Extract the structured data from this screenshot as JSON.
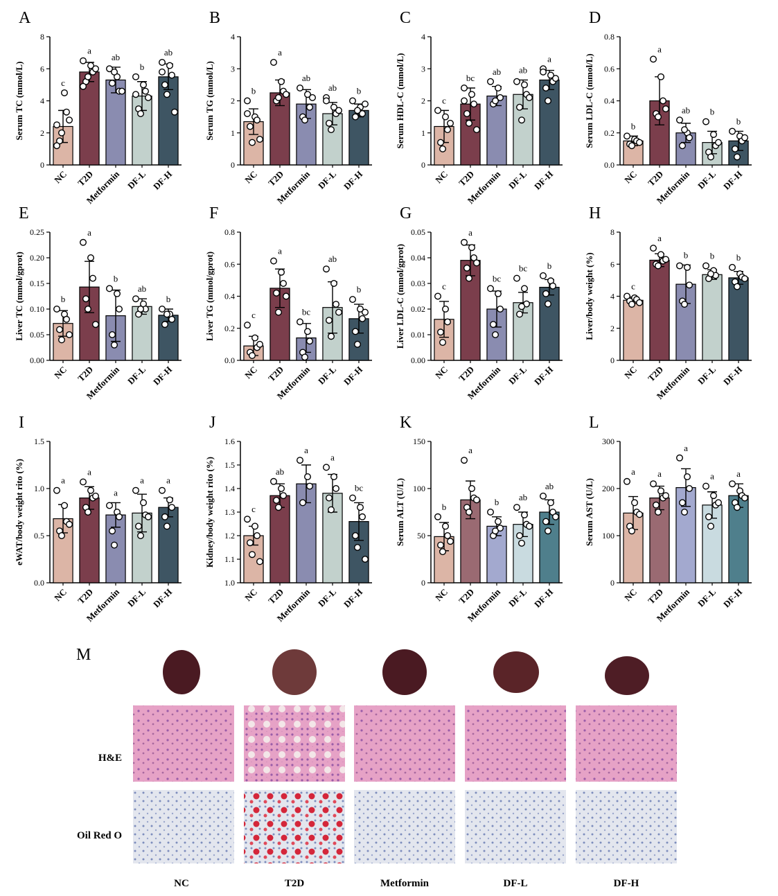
{
  "chart_data": [
    {
      "type": "bar",
      "panel": "A",
      "ylabel": "Serum TC (mmol/L)",
      "categories": [
        "NC",
        "T2D",
        "Metformin",
        "DF-L",
        "DF-H"
      ],
      "colors": [
        "#dcb5a6",
        "#7b3e4c",
        "#8a8cb0",
        "#c2d1cc",
        "#3e5563"
      ],
      "values": [
        2.4,
        5.8,
        5.3,
        4.3,
        5.5
      ],
      "errors": [
        1.0,
        0.6,
        0.8,
        0.9,
        0.8
      ],
      "letters": [
        "c",
        "a",
        "ab",
        "b",
        "ab"
      ],
      "points": [
        [
          2.5,
          4.5,
          3.3,
          1.5,
          2.0,
          2.8,
          1.2
        ],
        [
          6.5,
          6.2,
          5.8,
          5.2,
          5.5,
          6.0,
          4.9
        ],
        [
          6.0,
          5.5,
          4.6,
          5.1,
          5.8,
          4.6
        ],
        [
          5.5,
          5.0,
          4.6,
          3.5,
          3.2,
          4.2,
          4.4
        ],
        [
          6.4,
          6.2,
          5.6,
          5.0,
          4.4,
          3.3,
          5.8
        ]
      ],
      "ylim": [
        0,
        8
      ],
      "yticks": [
        0,
        2,
        4,
        6,
        8
      ]
    },
    {
      "type": "bar",
      "panel": "B",
      "ylabel": "Serum TG (mmol/L)",
      "categories": [
        "NC",
        "T2D",
        "Metformin",
        "DF-L",
        "DF-H"
      ],
      "colors": [
        "#dcb5a6",
        "#7b3e4c",
        "#8a8cb0",
        "#c2d1cc",
        "#3e5563"
      ],
      "values": [
        1.35,
        2.25,
        1.9,
        1.6,
        1.7
      ],
      "errors": [
        0.4,
        0.4,
        0.45,
        0.35,
        0.2
      ],
      "letters": [
        "b",
        "a",
        "ab",
        "ab",
        "b"
      ],
      "points": [
        [
          2.0,
          1.5,
          1.4,
          1.2,
          0.7,
          0.8,
          1.6
        ],
        [
          3.2,
          2.6,
          2.3,
          2.0,
          2.1,
          2.2
        ],
        [
          2.4,
          2.2,
          1.8,
          1.5,
          1.4,
          2.1
        ],
        [
          2.1,
          1.8,
          1.6,
          1.3,
          1.1,
          1.7,
          2.0
        ],
        [
          2.0,
          1.8,
          1.6,
          1.5,
          1.7,
          1.9
        ]
      ],
      "ylim": [
        0,
        4
      ],
      "yticks": [
        0,
        1,
        2,
        3,
        4
      ]
    },
    {
      "type": "bar",
      "panel": "C",
      "ylabel": "Serum HDL-C (mmol/L)",
      "categories": [
        "NC",
        "T2D",
        "Metformin",
        "DF-L",
        "DF-H"
      ],
      "colors": [
        "#dcb5a6",
        "#7b3e4c",
        "#8a8cb0",
        "#c2d1cc",
        "#3e5563"
      ],
      "values": [
        1.2,
        1.9,
        2.15,
        2.2,
        2.65
      ],
      "errors": [
        0.5,
        0.5,
        0.3,
        0.45,
        0.3
      ],
      "letters": [
        "c",
        "bc",
        "ab",
        "ab",
        "a"
      ],
      "points": [
        [
          1.7,
          1.5,
          1.1,
          0.7,
          0.5,
          1.3
        ],
        [
          2.4,
          2.2,
          1.9,
          1.6,
          1.3,
          1.1,
          2.0
        ],
        [
          2.6,
          2.4,
          2.1,
          1.9,
          2.0
        ],
        [
          2.6,
          2.5,
          2.2,
          1.8,
          1.4,
          2.1
        ],
        [
          3.0,
          2.8,
          2.6,
          2.4,
          2.0,
          2.7,
          2.9
        ]
      ],
      "ylim": [
        0,
        4
      ],
      "yticks": [
        0,
        1,
        2,
        3,
        4
      ]
    },
    {
      "type": "bar",
      "panel": "D",
      "ylabel": "Serum LDL-C (mmol/L)",
      "categories": [
        "NC",
        "T2D",
        "Metformin",
        "DF-L",
        "DF-H"
      ],
      "colors": [
        "#dcb5a6",
        "#7b3e4c",
        "#8a8cb0",
        "#c2d1cc",
        "#3e5563"
      ],
      "values": [
        0.15,
        0.4,
        0.2,
        0.14,
        0.15
      ],
      "errors": [
        0.03,
        0.15,
        0.06,
        0.07,
        0.06
      ],
      "letters": [
        "b",
        "a",
        "ab",
        "b",
        "b"
      ],
      "points": [
        [
          0.18,
          0.16,
          0.15,
          0.13,
          0.12,
          0.14
        ],
        [
          0.66,
          0.55,
          0.4,
          0.32,
          0.3,
          0.35
        ],
        [
          0.28,
          0.2,
          0.17,
          0.12,
          0.22
        ],
        [
          0.27,
          0.19,
          0.12,
          0.08,
          0.05,
          0.14
        ],
        [
          0.21,
          0.18,
          0.15,
          0.1,
          0.05,
          0.17
        ]
      ],
      "ylim": [
        0,
        0.8
      ],
      "yticks": [
        {
          "value": 0,
          "label": "0.0"
        },
        0.2,
        0.4,
        0.6,
        0.8
      ]
    },
    {
      "type": "bar",
      "panel": "E",
      "ylabel": "Liver TC (mmol/gprot)",
      "categories": [
        "NC",
        "T2D",
        "Metformin",
        "DF-L",
        "DF-H"
      ],
      "colors": [
        "#dcb5a6",
        "#7b3e4c",
        "#8a8cb0",
        "#c2d1cc",
        "#3e5563"
      ],
      "values": [
        0.072,
        0.143,
        0.087,
        0.105,
        0.088
      ],
      "errors": [
        0.025,
        0.05,
        0.05,
        0.015,
        0.012
      ],
      "letters": [
        "b",
        "a",
        "b",
        "ab",
        "b"
      ],
      "points": [
        [
          0.1,
          0.09,
          0.08,
          0.06,
          0.04,
          0.05
        ],
        [
          0.23,
          0.2,
          0.16,
          0.12,
          0.1,
          0.07
        ],
        [
          0.14,
          0.13,
          0.1,
          0.05,
          0.03
        ],
        [
          0.12,
          0.11,
          0.1,
          0.09,
          0.1
        ],
        [
          0.1,
          0.09,
          0.08,
          0.07,
          0.09
        ]
      ],
      "ylim": [
        0,
        0.25
      ],
      "yticks": [
        {
          "value": 0,
          "label": "0.00"
        },
        0.05,
        {
          "value": 0.1,
          "label": "0.10"
        },
        0.15,
        {
          "value": 0.2,
          "label": "0.20"
        },
        0.25
      ]
    },
    {
      "type": "bar",
      "panel": "F",
      "ylabel": "Liver TG (mmol/gprot)",
      "categories": [
        "NC",
        "T2D",
        "Metformin",
        "DF-L",
        "DF-H"
      ],
      "colors": [
        "#dcb5a6",
        "#7b3e4c",
        "#8a8cb0",
        "#c2d1cc",
        "#3e5563"
      ],
      "values": [
        0.09,
        0.45,
        0.14,
        0.33,
        0.26
      ],
      "errors": [
        0.06,
        0.12,
        0.09,
        0.16,
        0.09
      ],
      "letters": [
        "c",
        "a",
        "bc",
        "ab",
        "b"
      ],
      "points": [
        [
          0.22,
          0.14,
          0.08,
          0.05,
          0.03,
          0.1
        ],
        [
          0.62,
          0.55,
          0.48,
          0.42,
          0.3,
          0.4
        ],
        [
          0.24,
          0.18,
          0.12,
          0.05,
          0.02
        ],
        [
          0.57,
          0.48,
          0.35,
          0.25,
          0.15,
          0.3
        ],
        [
          0.38,
          0.32,
          0.26,
          0.18,
          0.1,
          0.3
        ]
      ],
      "ylim": [
        0,
        0.8
      ],
      "yticks": [
        {
          "value": 0,
          "label": "0.0"
        },
        0.2,
        0.4,
        0.6,
        0.8
      ]
    },
    {
      "type": "bar",
      "panel": "G",
      "ylabel": "Liver LDL-C (mmol/gprot)",
      "categories": [
        "NC",
        "T2D",
        "Metformin",
        "DF-L",
        "DF-H"
      ],
      "colors": [
        "#dcb5a6",
        "#7b3e4c",
        "#8a8cb0",
        "#c2d1cc",
        "#3e5563"
      ],
      "values": [
        0.016,
        0.039,
        0.02,
        0.0225,
        0.0285
      ],
      "errors": [
        0.007,
        0.006,
        0.007,
        0.004,
        0.003
      ],
      "letters": [
        "c",
        "a",
        "bc",
        "bc",
        "b"
      ],
      "points": [
        [
          0.025,
          0.02,
          0.015,
          0.011,
          0.007
        ],
        [
          0.046,
          0.044,
          0.04,
          0.036,
          0.032,
          0.038
        ],
        [
          0.028,
          0.026,
          0.02,
          0.014,
          0.01
        ],
        [
          0.032,
          0.028,
          0.022,
          0.018,
          0.021
        ],
        [
          0.033,
          0.031,
          0.029,
          0.026,
          0.022
        ]
      ],
      "ylim": [
        0,
        0.05
      ],
      "yticks": [
        {
          "value": 0,
          "label": "0.00"
        },
        0.01,
        0.02,
        0.03,
        0.04,
        0.05
      ]
    },
    {
      "type": "bar",
      "panel": "H",
      "ylabel": "Liver/body weight (%)",
      "categories": [
        "NC",
        "T2D",
        "Metformin",
        "DF-L",
        "DF-H"
      ],
      "colors": [
        "#dcb5a6",
        "#7b3e4c",
        "#8a8cb0",
        "#c2d1cc",
        "#3e5563"
      ],
      "values": [
        3.75,
        6.25,
        4.75,
        5.35,
        5.15
      ],
      "errors": [
        0.2,
        0.4,
        1.2,
        0.3,
        0.4
      ],
      "letters": [
        "c",
        "a",
        "b",
        "b",
        "b"
      ],
      "points": [
        [
          4.0,
          3.9,
          3.8,
          3.7,
          3.5,
          3.6
        ],
        [
          7.0,
          6.6,
          6.2,
          6.0,
          5.9,
          6.3
        ],
        [
          5.9,
          5.8,
          4.7,
          3.7,
          3.5
        ],
        [
          5.9,
          5.6,
          5.3,
          5.1,
          5.4
        ],
        [
          5.8,
          5.4,
          5.2,
          4.9,
          4.6,
          5.1
        ]
      ],
      "ylim": [
        0,
        8
      ],
      "yticks": [
        0,
        2,
        4,
        6,
        8
      ]
    },
    {
      "type": "bar",
      "panel": "I",
      "ylabel": "eWAT/body weight rito (%)",
      "categories": [
        "NC",
        "T2D",
        "Metformin",
        "DF-L",
        "DF-H"
      ],
      "colors": [
        "#dcb5a6",
        "#7b3e4c",
        "#8a8cb0",
        "#c2d1cc",
        "#3e5563"
      ],
      "values": [
        0.68,
        0.9,
        0.72,
        0.74,
        0.8
      ],
      "errors": [
        0.15,
        0.12,
        0.13,
        0.2,
        0.1
      ],
      "letters": [
        "a",
        "a",
        "a",
        "a",
        "a"
      ],
      "points": [
        [
          0.98,
          0.82,
          0.65,
          0.55,
          0.5,
          0.62
        ],
        [
          1.07,
          0.98,
          0.9,
          0.8,
          0.75,
          0.92
        ],
        [
          0.82,
          0.75,
          0.7,
          0.55,
          0.4
        ],
        [
          0.98,
          0.85,
          0.72,
          0.6,
          0.5,
          0.7
        ],
        [
          0.98,
          0.88,
          0.8,
          0.7,
          0.6
        ]
      ],
      "ylim": [
        0,
        1.5
      ],
      "yticks": [
        {
          "value": 0,
          "label": "0.0"
        },
        0.5,
        {
          "value": 1,
          "label": "1.0"
        },
        1.5
      ]
    },
    {
      "type": "bar",
      "panel": "J",
      "ylabel": "Kidney/body weight rito (%)",
      "categories": [
        "NC",
        "T2D",
        "Metformin",
        "DF-L",
        "DF-H"
      ],
      "colors": [
        "#dcb5a6",
        "#7b3e4c",
        "#8a8cb0",
        "#c2d1cc",
        "#3e5563"
      ],
      "values": [
        1.2,
        1.37,
        1.42,
        1.38,
        1.26
      ],
      "errors": [
        0.04,
        0.05,
        0.08,
        0.08,
        0.08
      ],
      "letters": [
        "c",
        "ab",
        "a",
        "a",
        "bc"
      ],
      "points": [
        [
          1.27,
          1.24,
          1.2,
          1.17,
          1.12,
          1.09
        ],
        [
          1.43,
          1.4,
          1.37,
          1.35,
          1.32
        ],
        [
          1.52,
          1.45,
          1.41,
          1.34
        ],
        [
          1.49,
          1.45,
          1.4,
          1.36,
          1.31
        ],
        [
          1.36,
          1.32,
          1.28,
          1.2,
          1.15,
          1.1
        ]
      ],
      "ylim": [
        1,
        1.6
      ],
      "yticks": [
        {
          "value": 1,
          "label": "1.0"
        },
        1.1,
        1.2,
        1.3,
        1.4,
        1.5,
        1.6
      ]
    },
    {
      "type": "bar",
      "panel": "K",
      "ylabel": "Serum ALT (U/L)",
      "categories": [
        "NC",
        "T2D",
        "Metformin",
        "DF-L",
        "DF-H"
      ],
      "colors": [
        "#dcb5a6",
        "#9a6a72",
        "#a3a9cf",
        "#c9dbe0",
        "#4f7f8c"
      ],
      "values": [
        49,
        88,
        60,
        62,
        75
      ],
      "errors": [
        15,
        20,
        10,
        13,
        13
      ],
      "letters": [
        "b",
        "a",
        "b",
        "ab",
        "ab"
      ],
      "points": [
        [
          70,
          60,
          50,
          40,
          33,
          44
        ],
        [
          130,
          100,
          90,
          80,
          75,
          88
        ],
        [
          75,
          65,
          58,
          50,
          55
        ],
        [
          80,
          72,
          62,
          50,
          42,
          60
        ],
        [
          92,
          85,
          75,
          65,
          55,
          70
        ]
      ],
      "ylim": [
        0,
        150
      ],
      "yticks": [
        0,
        50,
        100,
        150
      ]
    },
    {
      "type": "bar",
      "panel": "L",
      "ylabel": "Serum AST (U/L)",
      "categories": [
        "NC",
        "T2D",
        "Metformin",
        "DF-L",
        "DF-H"
      ],
      "colors": [
        "#dcb5a6",
        "#9a6a72",
        "#a3a9cf",
        "#c9dbe0",
        "#4f7f8c"
      ],
      "values": [
        148,
        180,
        202,
        165,
        185
      ],
      "errors": [
        35,
        25,
        40,
        28,
        25
      ],
      "letters": [
        "a",
        "a",
        "a",
        "a",
        "a"
      ],
      "points": [
        [
          215,
          170,
          150,
          120,
          110,
          145
        ],
        [
          210,
          195,
          180,
          165,
          150,
          185
        ],
        [
          265,
          225,
          200,
          170,
          150
        ],
        [
          205,
          185,
          165,
          140,
          120,
          170
        ],
        [
          210,
          195,
          185,
          170,
          160,
          180
        ]
      ],
      "ylim": [
        0,
        300
      ],
      "yticks": [
        0,
        100,
        200,
        300
      ]
    }
  ],
  "figure_m": {
    "panel": "M",
    "rows": [
      "H&E",
      "Oil Red O"
    ],
    "groups": [
      "NC",
      "T2D",
      "Metformin",
      "DF-L",
      "DF-H"
    ]
  }
}
